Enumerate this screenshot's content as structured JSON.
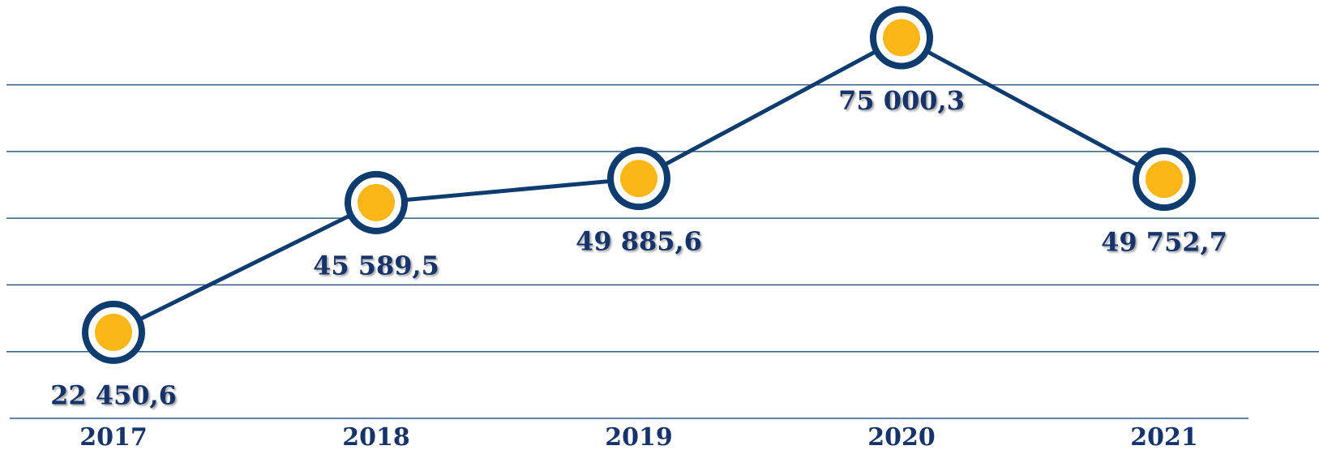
{
  "chart_data": {
    "type": "line",
    "categories": [
      "2017",
      "2018",
      "2019",
      "2020",
      "2021"
    ],
    "series": [
      {
        "color": "#0f3c6e",
        "marker_color": "#fbb617",
        "values": [
          22450.6,
          45589.5,
          49885.6,
          75000.3,
          49752.7
        ],
        "value_labels": [
          "22 450,6",
          "45 589,5",
          "49 885,6",
          "75 000,3",
          "49 752,7"
        ]
      }
    ],
    "ylim": [
      7100,
      78400
    ],
    "yticks": [
      7100,
      19000,
      30900,
      42800,
      54700,
      66600
    ],
    "grid": true
  }
}
